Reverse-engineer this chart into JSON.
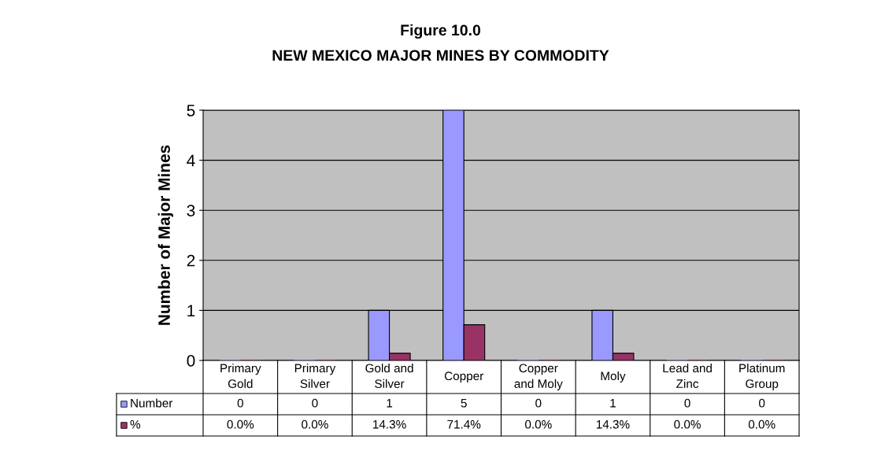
{
  "chart_data": {
    "type": "bar",
    "title": "Figure 10.0",
    "subtitle": "NEW MEXICO MAJOR MINES BY COMMODITY",
    "ylabel": "Number of Major Mines",
    "categories": [
      "Primary\nGold",
      "Primary\nSilver",
      "Gold and\nSilver",
      "Copper",
      "Copper\nand Moly",
      "Moly",
      "Lead and\nZinc",
      "Platinum\nGroup"
    ],
    "series": [
      {
        "name": "Number",
        "color": "#9999ff",
        "values": [
          0,
          0,
          1,
          5,
          0,
          1,
          0,
          0
        ],
        "value_labels": [
          "0",
          "0",
          "1",
          "5",
          "0",
          "1",
          "0",
          "0"
        ]
      },
      {
        "name": "%",
        "color": "#993366",
        "values": [
          0,
          0,
          0.143,
          0.714,
          0,
          0.143,
          0,
          0
        ],
        "value_labels": [
          "0.0%",
          "0.0%",
          "14.3%",
          "71.4%",
          "0.0%",
          "14.3%",
          "0.0%",
          "0.0%"
        ]
      }
    ],
    "ylim": [
      0,
      5
    ],
    "yticks": [
      0,
      1,
      2,
      3,
      4,
      5
    ],
    "grid": "y",
    "legend": "bottom left"
  }
}
